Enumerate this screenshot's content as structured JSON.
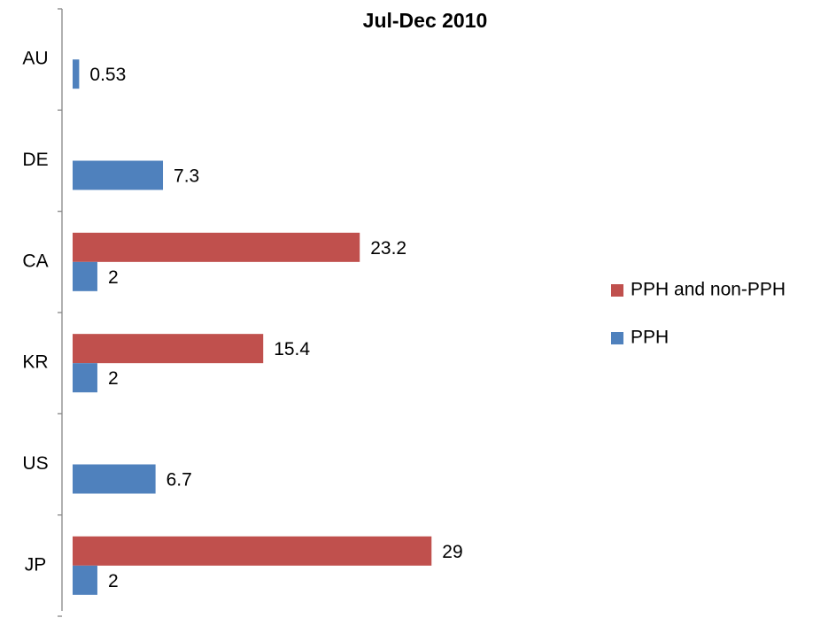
{
  "chart_data": {
    "type": "hbar",
    "title": "Jul-Dec 2010",
    "categories": [
      "AU",
      "DE",
      "CA",
      "KR",
      "US",
      "JP"
    ],
    "series": [
      {
        "name": "PPH and non-PPH",
        "color": "#c0504d",
        "values": [
          null,
          null,
          23.2,
          15.4,
          null,
          29
        ]
      },
      {
        "name": "PPH",
        "color": "#4f81bd",
        "values": [
          0.53,
          7.3,
          2,
          2,
          6.7,
          2
        ]
      }
    ],
    "xlim": [
      0,
      40
    ],
    "legend": "right"
  }
}
